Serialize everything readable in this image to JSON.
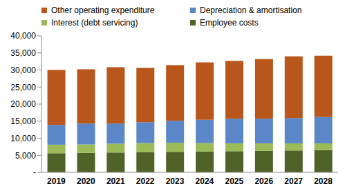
{
  "chart_data": {
    "type": "bar",
    "stacked": true,
    "grid": false,
    "legend": "top",
    "categories": [
      "2019",
      "2020",
      "2021",
      "2022",
      "2023",
      "2024",
      "2025",
      "2026",
      "2027",
      "2028"
    ],
    "series": [
      {
        "name": "Employee costs",
        "color": "#4f6228",
        "values": [
          5600,
          5700,
          5800,
          5900,
          6000,
          6100,
          6200,
          6300,
          6400,
          6500
        ]
      },
      {
        "name": "Interest (debt servicing)",
        "color": "#9bbb59",
        "values": [
          2500,
          2500,
          2600,
          2700,
          2700,
          2500,
          2300,
          2200,
          2100,
          2000
        ]
      },
      {
        "name": "Depreciation & amortisation",
        "color": "#5b87c9",
        "values": [
          5800,
          6100,
          5900,
          6100,
          6400,
          6800,
          7200,
          7200,
          7400,
          7700
        ]
      },
      {
        "name": "Other operating expenditure",
        "color": "#b8561b",
        "values": [
          16100,
          15900,
          16500,
          15900,
          16300,
          16800,
          17000,
          17500,
          18100,
          18000
        ]
      }
    ],
    "ylim": [
      0,
      40000
    ],
    "yticks": [
      {
        "value": 0,
        "label": "-"
      },
      {
        "value": 5000,
        "label": "5,000"
      },
      {
        "value": 10000,
        "label": "10,000"
      },
      {
        "value": 15000,
        "label": "15,000"
      },
      {
        "value": 20000,
        "label": "20,000"
      },
      {
        "value": 25000,
        "label": "25,000"
      },
      {
        "value": 30000,
        "label": "30,000"
      },
      {
        "value": 35000,
        "label": "35,000"
      },
      {
        "value": 40000,
        "label": "40,000"
      }
    ]
  }
}
